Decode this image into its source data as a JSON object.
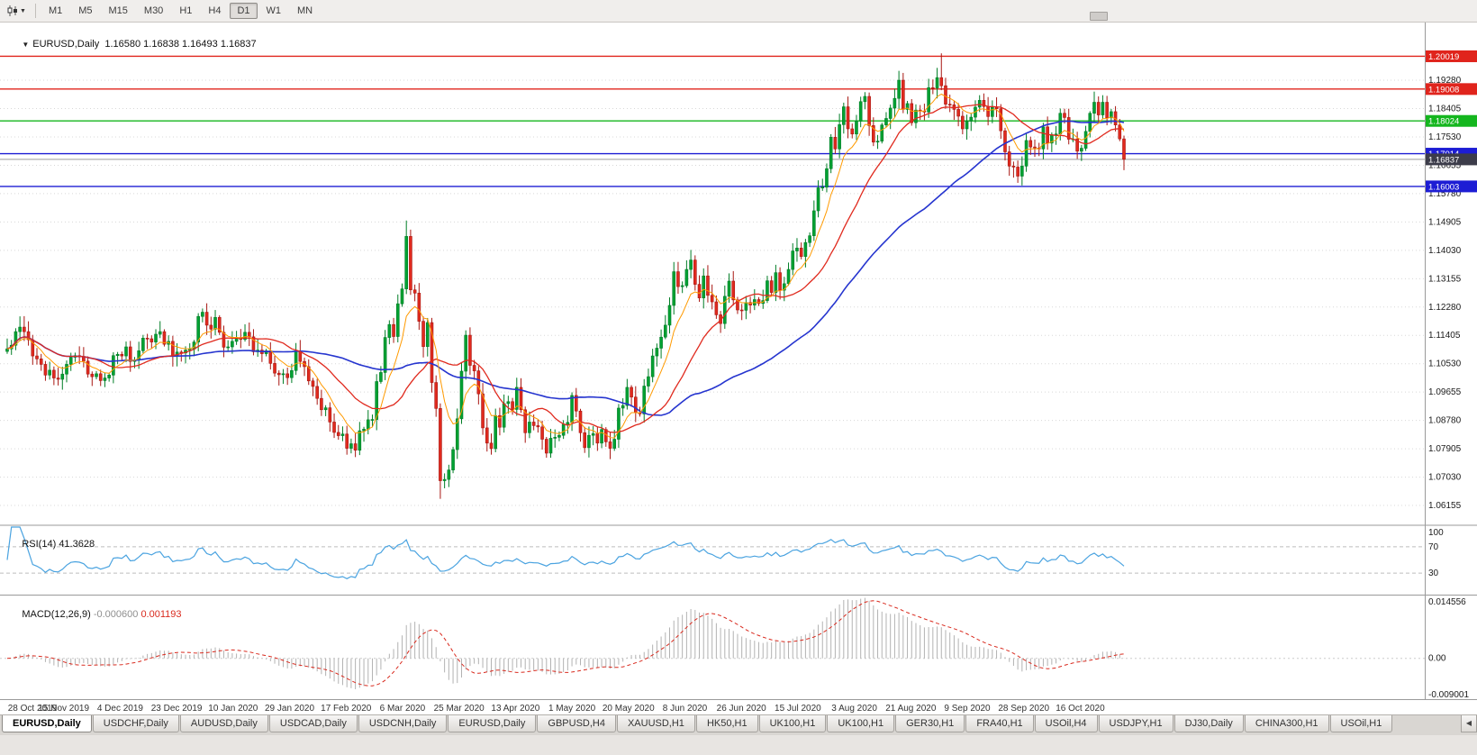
{
  "toolbar": {
    "timeframes": [
      "M1",
      "M5",
      "M15",
      "M30",
      "H1",
      "H4",
      "D1",
      "W1",
      "MN"
    ],
    "active_timeframe": "D1"
  },
  "chart": {
    "symbol_period": "EURUSD,Daily",
    "ohlc": "1.16580 1.16838 1.16493 1.16837",
    "current_price": "1.16837",
    "current_price_bg": "#3c3c4a",
    "hlines": [
      {
        "price": 1.20019,
        "label": "1.20019",
        "color": "#e0241c"
      },
      {
        "price": 1.19008,
        "label": "1.19008",
        "color": "#e0241c"
      },
      {
        "price": 1.18024,
        "label": "1.18024",
        "color": "#14b61e"
      },
      {
        "price": 1.17014,
        "label": "1.17014",
        "color": "#1d1dd4"
      },
      {
        "price": 1.16003,
        "label": "1.16003",
        "color": "#1d1dd4"
      }
    ],
    "price_axis": [
      "1.19280",
      "1.18405",
      "1.17530",
      "1.16655",
      "1.15780",
      "1.14905",
      "1.14030",
      "1.13155",
      "1.12280",
      "1.11405",
      "1.10530",
      "1.09655",
      "1.08780",
      "1.07905",
      "1.07030",
      "1.06155"
    ],
    "date_axis": [
      "28 Oct 2019",
      "15 Nov 2019",
      "4 Dec 2019",
      "23 Dec 2019",
      "10 Jan 2020",
      "29 Jan 2020",
      "17 Feb 2020",
      "6 Mar 2020",
      "25 Mar 2020",
      "13 Apr 2020",
      "1 May 2020",
      "20 May 2020",
      "8 Jun 2020",
      "26 Jun 2020",
      "15 Jul 2020",
      "3 Aug 2020",
      "21 Aug 2020",
      "9 Sep 2020",
      "28 Sep 2020",
      "16 Oct 2020"
    ]
  },
  "rsi": {
    "title": "RSI(14)",
    "value": "41.3628",
    "axis": [
      "100",
      "70",
      "30"
    ],
    "line_color": "#4aa3e0"
  },
  "macd": {
    "title": "MACD(12,26,9)",
    "value1": "-0.000600",
    "value2": "0.001193",
    "axis": [
      "0.014556",
      "0.00",
      "-0.009001"
    ],
    "bar_color": "#b2b2b2",
    "signal_color": "#d92a1e"
  },
  "tabs": {
    "items": [
      "EURUSD,Daily",
      "USDCHF,Daily",
      "AUDUSD,Daily",
      "USDCAD,Daily",
      "USDCNH,Daily",
      "EURUSD,Daily",
      "GBPUSD,H4",
      "XAUUSD,H1",
      "HK50,H1",
      "UK100,H1",
      "UK100,H1",
      "GER30,H1",
      "FRA40,H1",
      "USOil,H4",
      "USDJPY,H1",
      "DJ30,Daily",
      "CHINA300,H1",
      "USOil,H1"
    ],
    "active_index": 0,
    "scroll_left_glyph": "◀"
  },
  "colors": {
    "candle_up": "#00a132",
    "candle_up_border": "#007d26",
    "candle_down": "#e02a1e",
    "candle_down_border": "#a81712",
    "ma_fast": "#ff9a00",
    "ma_mid": "#e02a1e",
    "ma_slow": "#2635cf",
    "grid": "#d8d8d8"
  },
  "chart_data": {
    "type": "candlestick",
    "symbol": "EURUSD",
    "timeframe": "Daily",
    "ylim": [
      1.056,
      1.2095
    ],
    "macd_ylim": [
      -0.0098,
      0.0152
    ],
    "rsi_period": 14,
    "macd_params": [
      12,
      26,
      9
    ],
    "ma_periods": {
      "fast": 8,
      "mid": 21,
      "slow": 55
    },
    "wick_overrides": {
      "94": {
        "h": 1.1495
      },
      "102": {
        "l": 1.0636
      },
      "220": {
        "h": 1.2011
      }
    },
    "closes": [
      1.1099,
      1.111,
      1.1152,
      1.1166,
      1.1152,
      1.1127,
      1.1077,
      1.1068,
      1.1051,
      1.1018,
      1.1033,
      1.1009,
      1.1005,
      1.1021,
      1.1051,
      1.1073,
      1.1078,
      1.1074,
      1.1061,
      1.1021,
      1.1013,
      1.1022,
      1.1001,
      1.1009,
      1.1018,
      1.1078,
      1.1082,
      1.1077,
      1.1105,
      1.106,
      1.1064,
      1.1093,
      1.1132,
      1.113,
      1.112,
      1.1144,
      1.1152,
      1.1113,
      1.1122,
      1.1078,
      1.1089,
      1.1086,
      1.1095,
      1.1098,
      1.112,
      1.1199,
      1.1212,
      1.1172,
      1.116,
      1.1196,
      1.115,
      1.1104,
      1.1105,
      1.1122,
      1.1134,
      1.1128,
      1.115,
      1.1136,
      1.109,
      1.1095,
      1.1084,
      1.1093,
      1.1054,
      1.1024,
      1.1019,
      1.1022,
      1.101,
      1.1032,
      1.1093,
      1.106,
      1.1044,
      1.1,
      1.0983,
      1.0946,
      1.0911,
      1.0917,
      1.0873,
      1.0841,
      1.0831,
      1.0836,
      1.0792,
      1.0806,
      1.0786,
      1.0846,
      1.0851,
      1.088,
      1.0881,
      1.0998,
      1.1026,
      1.1134,
      1.1174,
      1.1137,
      1.1238,
      1.1284,
      1.1446,
      1.1281,
      1.1271,
      1.1184,
      1.1106,
      1.118,
      1.0995,
      1.0915,
      1.0692,
      1.0696,
      1.0725,
      1.0788,
      1.0883,
      1.103,
      1.1141,
      1.1048,
      1.1031,
      1.096,
      1.0855,
      1.0808,
      1.0791,
      1.0893,
      1.0857,
      1.093,
      1.0936,
      1.0912,
      1.098,
      1.0911,
      1.084,
      1.0873,
      1.0862,
      1.0858,
      1.082,
      1.0777,
      1.0823,
      1.0826,
      1.0832,
      1.0866,
      1.0872,
      1.0955,
      1.0907,
      1.084,
      1.0794,
      1.0832,
      1.0837,
      1.0808,
      1.085,
      1.0812,
      1.0792,
      1.082,
      1.0916,
      1.0924,
      1.098,
      1.095,
      1.0902,
      1.0898,
      1.0984,
      1.1013,
      1.1077,
      1.1101,
      1.1135,
      1.1172,
      1.1233,
      1.1337,
      1.1291,
      1.1294,
      1.1344,
      1.1373,
      1.1298,
      1.1256,
      1.1324,
      1.1264,
      1.1244,
      1.1204,
      1.1177,
      1.1261,
      1.1308,
      1.125,
      1.1219,
      1.1218,
      1.1242,
      1.1234,
      1.1251,
      1.1239,
      1.1248,
      1.1309,
      1.1273,
      1.1334,
      1.128,
      1.13,
      1.1344,
      1.1401,
      1.141,
      1.1384,
      1.1427,
      1.1448,
      1.1525,
      1.1596,
      1.1598,
      1.1655,
      1.1752,
      1.1716,
      1.1791,
      1.1846,
      1.1778,
      1.1762,
      1.1802,
      1.1862,
      1.1878,
      1.1788,
      1.1737,
      1.174,
      1.179,
      1.181,
      1.1842,
      1.1872,
      1.1928,
      1.1838,
      1.1856,
      1.1797,
      1.1836,
      1.1833,
      1.183,
      1.1905,
      1.1904,
      1.1936,
      1.1911,
      1.1854,
      1.1852,
      1.1838,
      1.1817,
      1.1778,
      1.1802,
      1.1814,
      1.1845,
      1.1866,
      1.1847,
      1.1816,
      1.1844,
      1.184,
      1.1772,
      1.1707,
      1.1663,
      1.166,
      1.1632,
      1.1663,
      1.1742,
      1.1722,
      1.1719,
      1.1716,
      1.1784,
      1.1734,
      1.176,
      1.1762,
      1.1826,
      1.1813,
      1.1746,
      1.1747,
      1.1709,
      1.1718,
      1.177,
      1.1826,
      1.186,
      1.1821,
      1.186,
      1.1812,
      1.1831,
      1.179,
      1.1747,
      1.1684
    ]
  }
}
